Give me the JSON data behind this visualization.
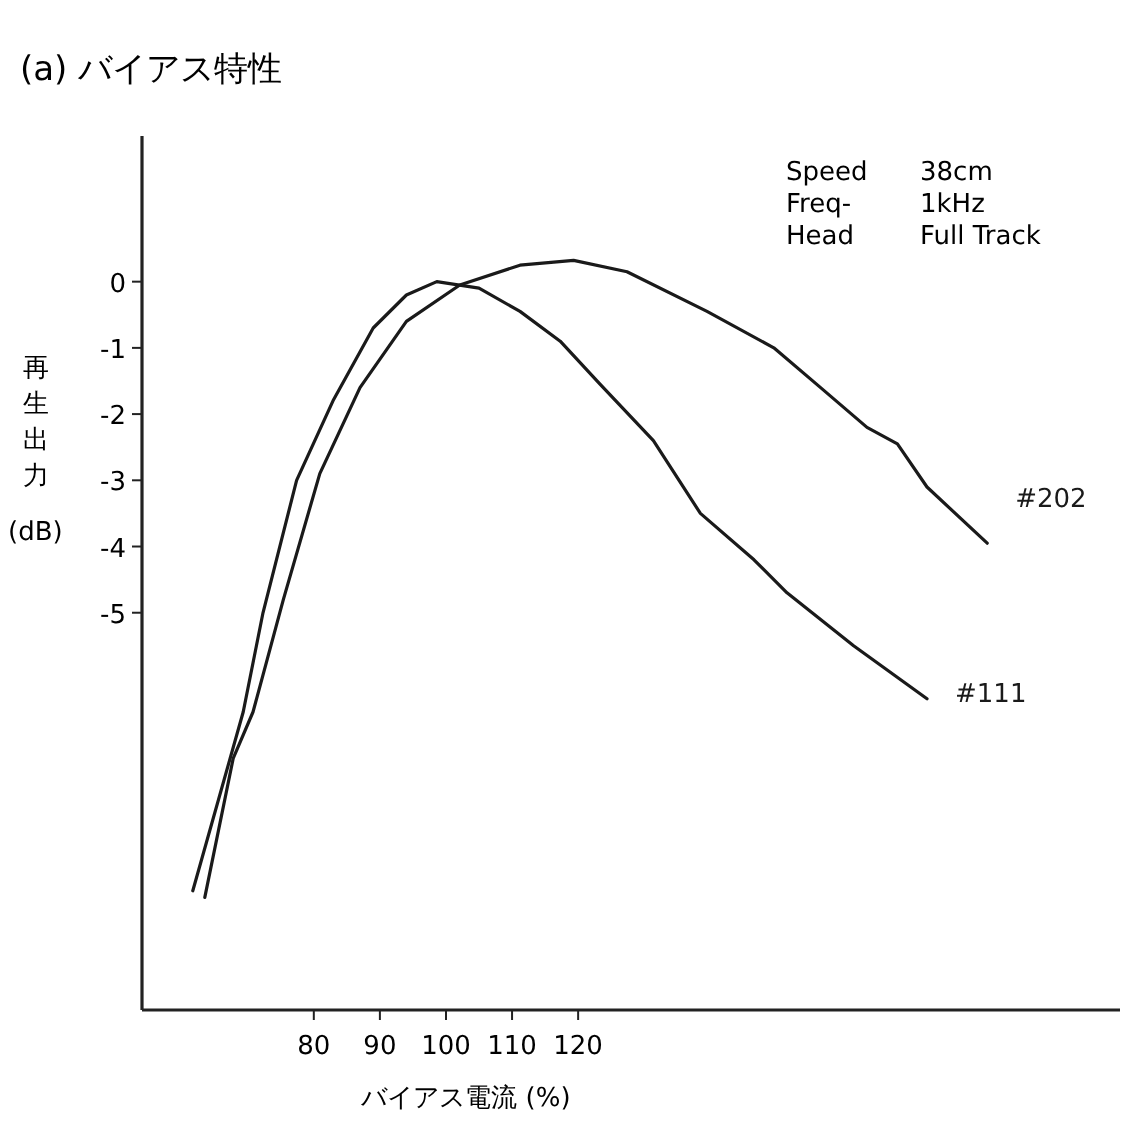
{
  "chart_data": {
    "type": "line",
    "title": "(a) バイアス特性",
    "xlabel": "バイアス電流 (%)",
    "ylabel": "再生出力 (dB)",
    "annotations": [
      "Speed  38cm",
      "Freq-  1kHz",
      "Head  Full Track"
    ],
    "xlim": [
      54,
      202
    ],
    "ylim": [
      -11,
      2.2
    ],
    "xticks": [
      80,
      90,
      100,
      110,
      120
    ],
    "yticks": [
      0,
      -1,
      -2,
      -3,
      -4,
      -5
    ],
    "tick_labels": [
      "x",
      "y"
    ],
    "grid": false,
    "legend": false,
    "marker": "none",
    "line_style": "solid",
    "series": [
      {
        "name": "#111",
        "color": "#1a1a1a",
        "x": [
          61.7,
          69.3,
          72.3,
          77.4,
          82.9,
          89.0,
          94.0,
          98.6,
          105.0,
          111.2,
          117.3,
          123.3,
          131.4,
          138.5,
          146.6,
          151.6,
          161.7,
          172.8
        ],
        "values": [
          -9.2,
          -6.5,
          -5.0,
          -3.0,
          -1.8,
          -0.7,
          -0.2,
          0.0,
          -0.1,
          -0.45,
          -0.9,
          -1.55,
          -2.4,
          -3.5,
          -4.2,
          -4.7,
          -5.5,
          -6.3
        ]
      },
      {
        "name": "#202",
        "color": "#1a1a1a",
        "x": [
          63.5,
          67.8,
          70.8,
          75.4,
          80.9,
          87.0,
          94.0,
          102.1,
          111.2,
          119.3,
          127.4,
          139.5,
          149.6,
          156.7,
          163.7,
          168.3,
          172.8,
          181.9
        ],
        "values": [
          -9.3,
          -7.2,
          -6.5,
          -4.8,
          -2.9,
          -1.6,
          -0.6,
          -0.05,
          0.25,
          0.32,
          0.15,
          -0.45,
          -1.0,
          -1.6,
          -2.2,
          -2.45,
          -3.1,
          -3.95
        ]
      }
    ]
  }
}
